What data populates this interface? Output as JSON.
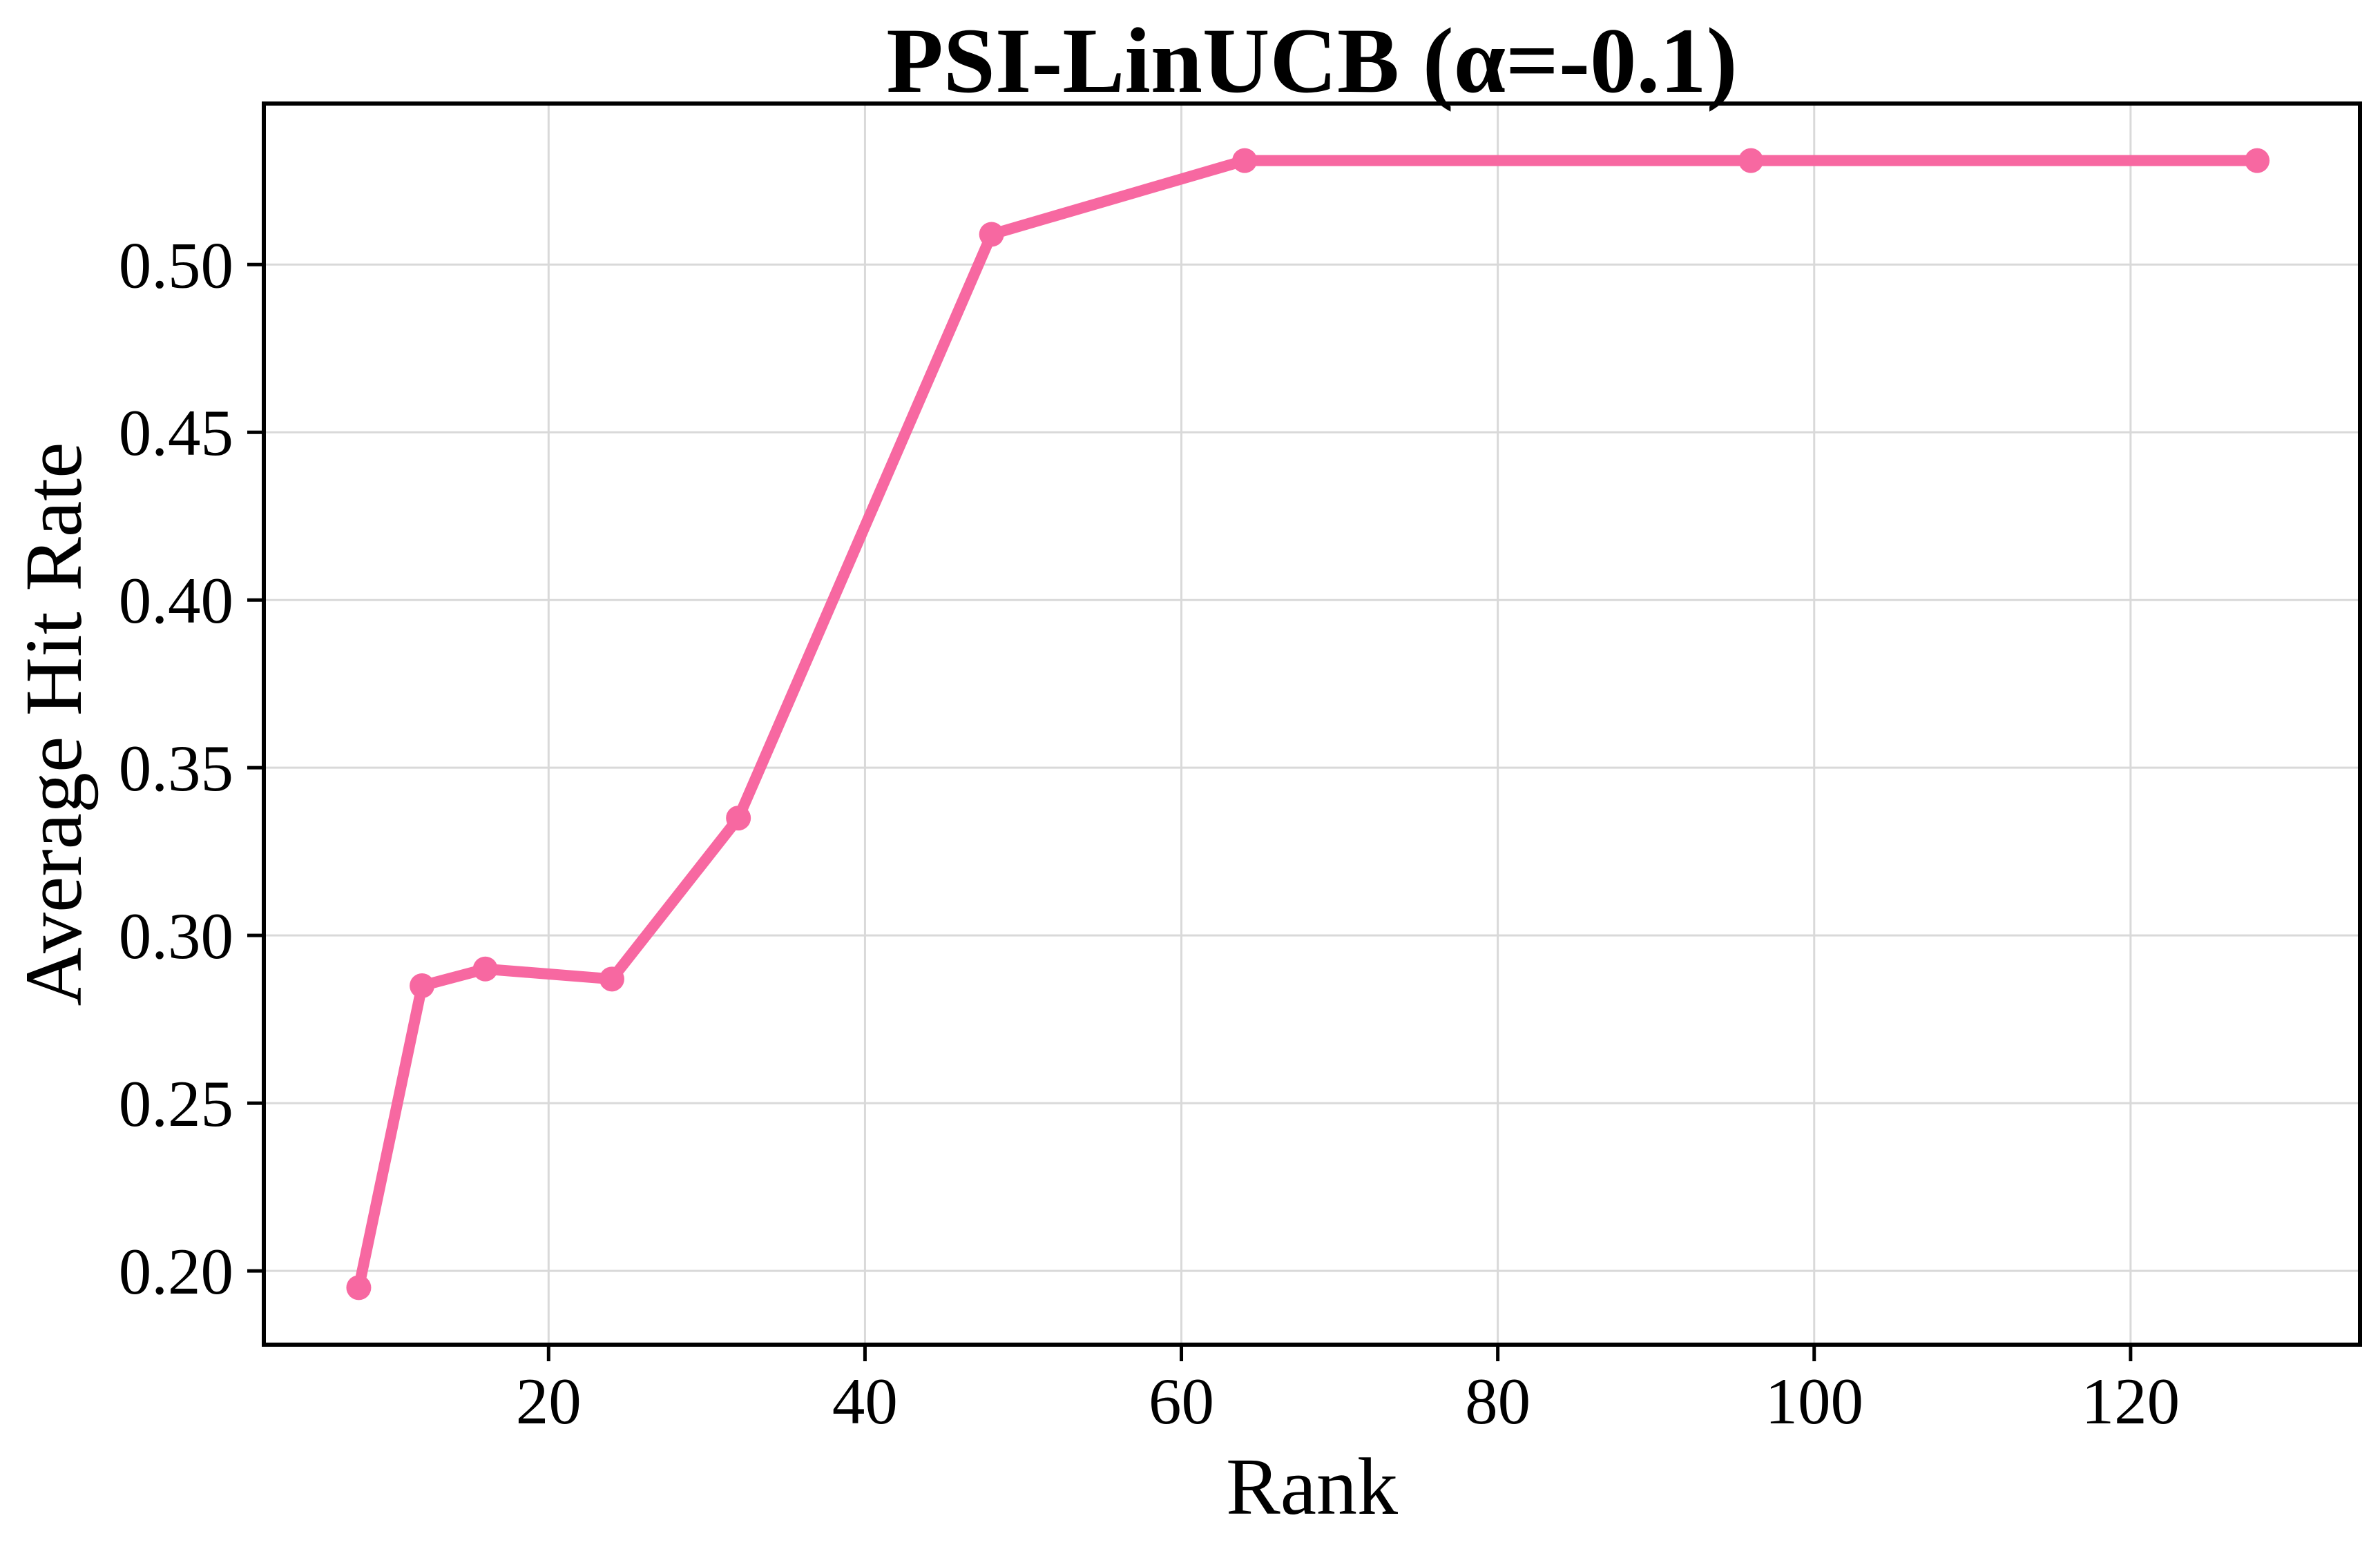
{
  "figure": {
    "title": "PSI-LinUCB (α=-0.1)",
    "xlabel": "Rank",
    "ylabel": "Average Hit Rate"
  },
  "chart_data": {
    "type": "line",
    "title": "PSI-LinUCB (α=-0.1)",
    "xlabel": "Rank",
    "ylabel": "Average Hit Rate",
    "series": [
      {
        "name": "PSI-LinUCB (α=-0.1)",
        "x": [
          8,
          12,
          16,
          24,
          32,
          48,
          64,
          96,
          128
        ],
        "y": [
          0.195,
          0.285,
          0.29,
          0.287,
          0.335,
          0.509,
          0.531,
          0.531,
          0.531
        ]
      }
    ],
    "xticks": {
      "values": [
        20,
        40,
        60,
        80,
        100,
        120
      ],
      "labels": [
        "20",
        "40",
        "60",
        "80",
        "100",
        "120"
      ]
    },
    "yticks": {
      "values": [
        0.2,
        0.25,
        0.3,
        0.35,
        0.4,
        0.45,
        0.5
      ],
      "labels": [
        "0.20",
        "0.25",
        "0.30",
        "0.35",
        "0.40",
        "0.45",
        "0.50"
      ]
    },
    "xlim": [
      2,
      134.5
    ],
    "ylim": [
      0.178,
      0.548
    ],
    "grid": true,
    "legend": null,
    "marker": "circle",
    "colors": {
      "line": "#f768a1",
      "marker": "#f768a1",
      "grid": "#d9d9d9",
      "axis": "#000000",
      "background": "#ffffff"
    }
  }
}
